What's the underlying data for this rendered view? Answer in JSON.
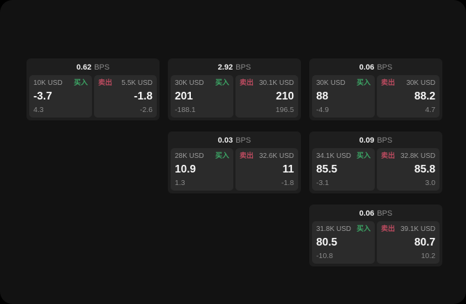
{
  "cards": [
    {
      "bps": "0.62",
      "bps_label": "BPS",
      "buy": {
        "amount": "10K USD",
        "side": "买入",
        "value": "-3.7",
        "sub": "4.3"
      },
      "sell": {
        "side": "卖出",
        "amount": "5.5K USD",
        "value": "-1.8",
        "sub": "-2.6"
      }
    },
    {
      "bps": "2.92",
      "bps_label": "BPS",
      "buy": {
        "amount": "30K USD",
        "side": "买入",
        "value": "201",
        "sub": "-188.1"
      },
      "sell": {
        "side": "卖出",
        "amount": "30.1K USD",
        "value": "210",
        "sub": "196.5"
      }
    },
    {
      "bps": "0.06",
      "bps_label": "BPS",
      "buy": {
        "amount": "30K USD",
        "side": "买入",
        "value": "88",
        "sub": "-4.9"
      },
      "sell": {
        "side": "卖出",
        "amount": "30K USD",
        "value": "88.2",
        "sub": "4.7"
      }
    },
    {
      "bps": "0.03",
      "bps_label": "BPS",
      "buy": {
        "amount": "28K USD",
        "side": "买入",
        "value": "10.9",
        "sub": "1.3"
      },
      "sell": {
        "side": "卖出",
        "amount": "32.6K USD",
        "value": "11",
        "sub": "-1.8"
      }
    },
    {
      "bps": "0.09",
      "bps_label": "BPS",
      "buy": {
        "amount": "34.1K USD",
        "side": "买入",
        "value": "85.5",
        "sub": "-3.1"
      },
      "sell": {
        "side": "卖出",
        "amount": "32.8K USD",
        "value": "85.8",
        "sub": "3.0"
      }
    },
    {
      "bps": "0.06",
      "bps_label": "BPS",
      "buy": {
        "amount": "31.8K USD",
        "side": "买入",
        "value": "80.5",
        "sub": "-10.8"
      },
      "sell": {
        "side": "卖出",
        "amount": "39.1K USD",
        "value": "80.7",
        "sub": "10.2"
      }
    }
  ],
  "colors": {
    "background": "#121212",
    "card": "#1e1e1e",
    "subcard": "#2b2b2b",
    "buy_green": "#3ca364",
    "sell_red": "#b84a5e"
  }
}
